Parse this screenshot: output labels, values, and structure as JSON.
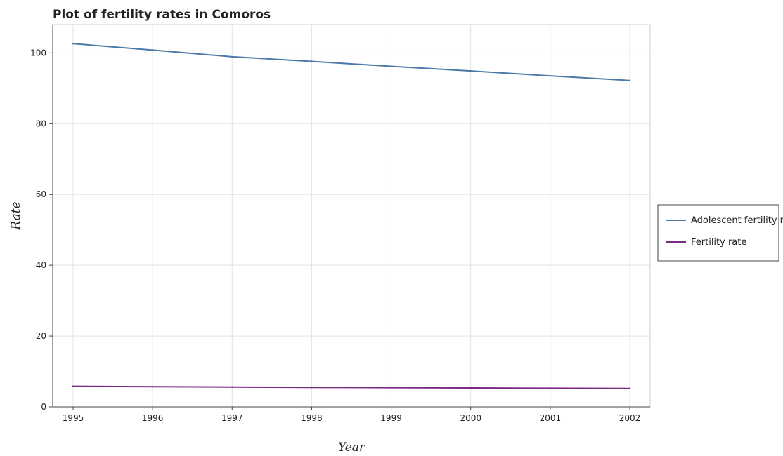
{
  "chart_data": {
    "type": "line",
    "title": "Plot of fertility rates in Comoros",
    "xlabel": "Year",
    "ylabel": "Rate",
    "categories": [
      "1995",
      "1996",
      "1997",
      "1998",
      "1999",
      "2000",
      "2001",
      "2002"
    ],
    "yticks": [
      "0",
      "20",
      "40",
      "60",
      "80",
      "100"
    ],
    "ylim": [
      0,
      108
    ],
    "grid": true,
    "legend_position": "right",
    "series": [
      {
        "name": "Adolescent fertility rate",
        "color": "#4d79a8",
        "values": [
          102.6,
          100.8,
          98.9,
          97.6,
          96.2,
          94.9,
          93.5,
          92.2
        ]
      },
      {
        "name": "Fertility rate",
        "color": "#7a2a84",
        "values": [
          5.81,
          5.7,
          5.6,
          5.51,
          5.43,
          5.35,
          5.27,
          5.2
        ]
      }
    ]
  }
}
